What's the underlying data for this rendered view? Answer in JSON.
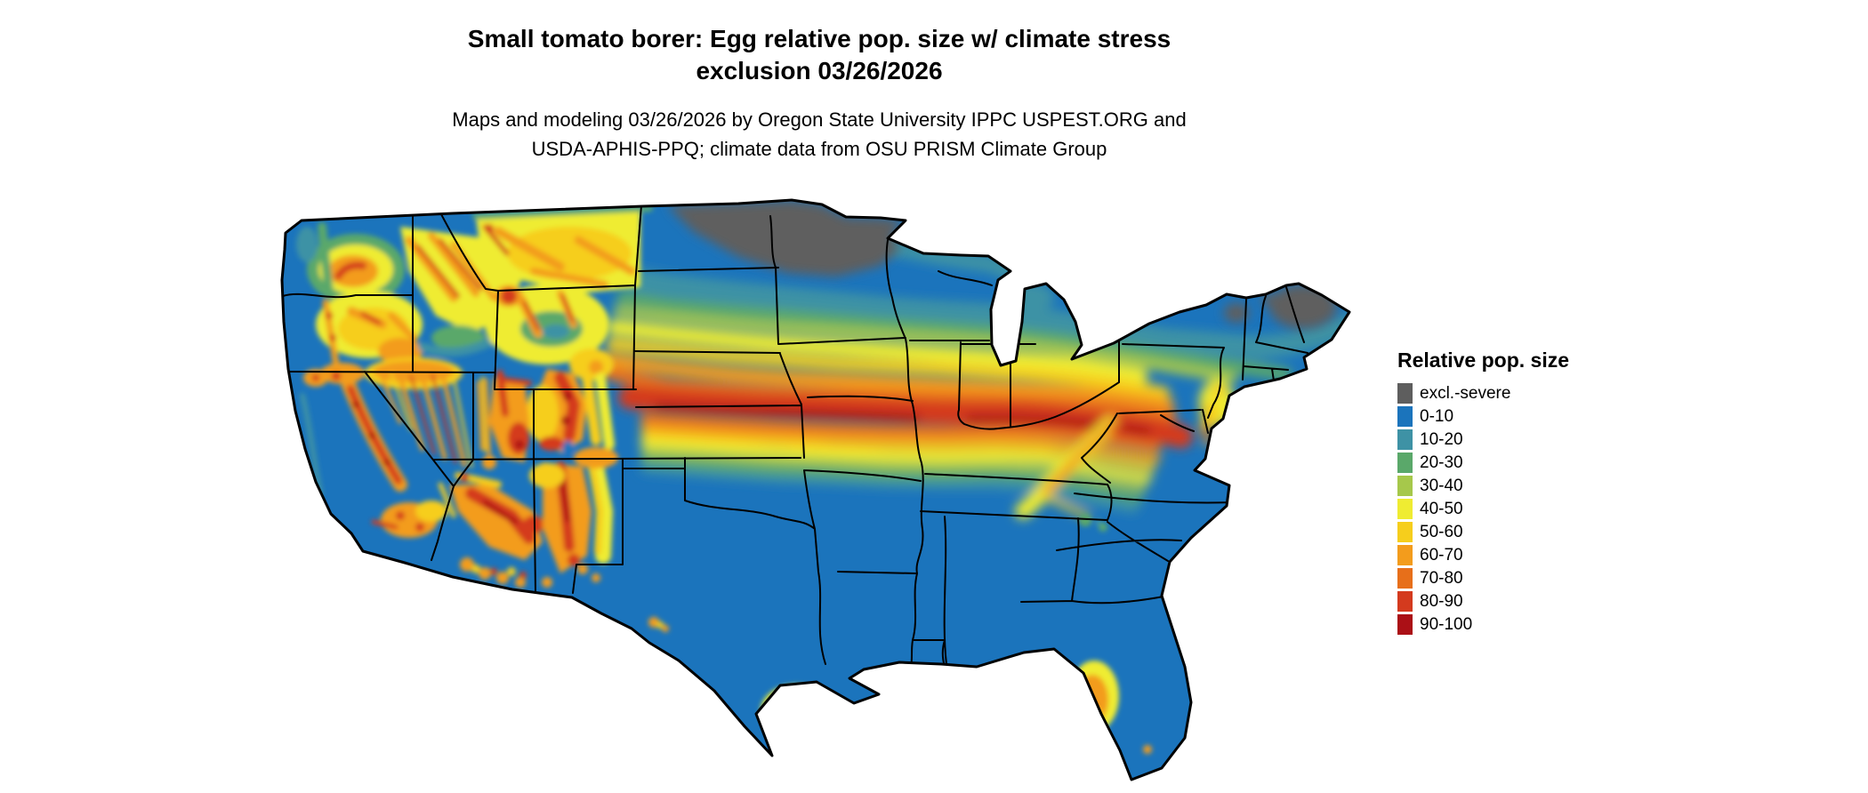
{
  "title": {
    "line1": "Small tomato borer: Egg relative pop. size w/ climate stress",
    "line2": "exclusion 03/26/2026"
  },
  "subtitle": {
    "line1": "Maps and modeling 03/26/2026 by Oregon State University IPPC USPEST.ORG and",
    "line2": "USDA-APHIS-PPQ; climate data from OSU PRISM Climate Group"
  },
  "legend": {
    "title": "Relative pop. size",
    "items": [
      {
        "key": "excl",
        "label": "excl.-severe",
        "color": "#5e5e5e"
      },
      {
        "key": "b0",
        "label": "0-10",
        "color": "#1b74bc"
      },
      {
        "key": "b10",
        "label": "10-20",
        "color": "#3e92a5"
      },
      {
        "key": "b20",
        "label": "20-30",
        "color": "#5aa86a"
      },
      {
        "key": "b30",
        "label": "30-40",
        "color": "#a6c84b"
      },
      {
        "key": "b40",
        "label": "40-50",
        "color": "#efec32"
      },
      {
        "key": "b50",
        "label": "50-60",
        "color": "#f6ce1c"
      },
      {
        "key": "b60",
        "label": "60-70",
        "color": "#f39c1c"
      },
      {
        "key": "b70",
        "label": "70-80",
        "color": "#e76f1a"
      },
      {
        "key": "b80",
        "label": "80-90",
        "color": "#d43a1e"
      },
      {
        "key": "b90",
        "label": "90-100",
        "color": "#ab1016"
      }
    ]
  }
}
